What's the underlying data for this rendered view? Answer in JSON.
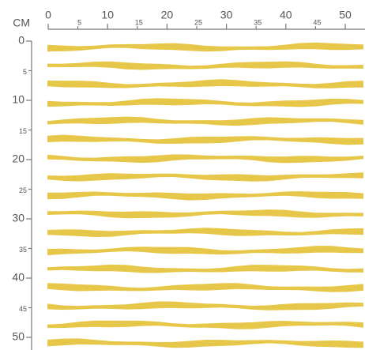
{
  "ruler": {
    "unit": "CM",
    "x_ticks": [
      0,
      5,
      10,
      15,
      20,
      25,
      30,
      35,
      40,
      45,
      50
    ],
    "y_ticks": [
      0,
      5,
      10,
      15,
      20,
      25,
      30,
      35,
      40,
      45,
      50
    ]
  }
}
